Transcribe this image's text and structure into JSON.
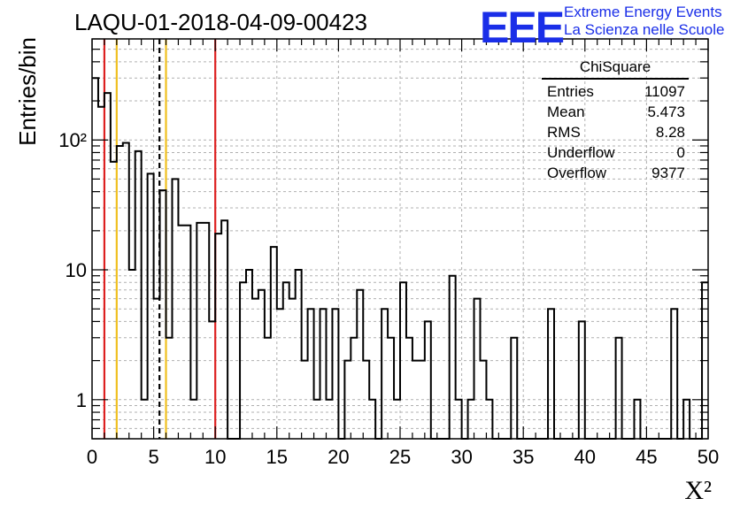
{
  "header": {
    "run_id": "LAQU-01-2018-04-09-00423",
    "logo_text": "EEE",
    "logo_line1": "Extreme Energy Events",
    "logo_line2": "La Scienza nelle Scuole",
    "logo_color": "#1a2ee8"
  },
  "stats_box": {
    "title": "ChiSquare",
    "rows": [
      {
        "label": "Entries",
        "value": "11097"
      },
      {
        "label": "Mean",
        "value": "5.473"
      },
      {
        "label": "RMS",
        "value": "8.28"
      },
      {
        "label": "Underflow",
        "value": "0"
      },
      {
        "label": "Overflow",
        "value": "9377"
      }
    ]
  },
  "chart_data": {
    "type": "bar",
    "xlabel": "X²",
    "ylabel": "Entries/bin",
    "xlim": [
      0,
      50
    ],
    "ylim": [
      0.5,
      600
    ],
    "yscale": "log",
    "grid": true,
    "bin_width": 0.5,
    "x_ticks": [
      0,
      5,
      10,
      15,
      20,
      25,
      30,
      35,
      40,
      45,
      50
    ],
    "x_tick_labels": [
      "0",
      "5",
      "10",
      "15",
      "20",
      "25",
      "30",
      "35",
      "40",
      "45",
      "50"
    ],
    "y_ticks": [
      1,
      10,
      100
    ],
    "y_tick_labels": [
      "1",
      "10",
      "10²"
    ],
    "values": [
      300,
      180,
      230,
      68,
      90,
      95,
      10,
      82,
      1,
      55,
      6,
      41,
      3,
      50,
      22,
      22,
      1,
      23,
      23,
      4,
      19,
      24,
      0,
      0,
      8,
      10,
      6,
      7,
      3,
      15,
      5,
      8,
      6,
      10,
      2,
      5,
      1,
      5,
      1,
      5,
      0,
      2,
      3,
      7,
      2,
      1,
      0,
      5,
      3,
      1,
      8,
      3,
      2,
      2,
      4,
      0,
      0,
      0,
      9,
      1,
      0,
      1,
      6,
      2,
      1,
      0,
      0,
      0,
      3,
      0,
      0,
      0,
      0,
      0,
      5,
      0,
      0,
      0,
      0,
      4,
      0,
      0,
      0,
      0,
      0,
      3,
      0,
      0,
      1,
      0,
      0,
      0,
      0,
      0,
      5,
      0,
      1,
      0,
      0,
      8
    ],
    "line_color": "#000000",
    "vertical_lines": [
      {
        "x": 1,
        "color": "#dd2020",
        "style": "solid"
      },
      {
        "x": 2,
        "color": "#f0c020",
        "style": "solid"
      },
      {
        "x": 5.473,
        "color": "#000000",
        "style": "dashed"
      },
      {
        "x": 6,
        "color": "#f0c020",
        "style": "solid"
      },
      {
        "x": 10,
        "color": "#dd2020",
        "style": "solid"
      }
    ]
  }
}
